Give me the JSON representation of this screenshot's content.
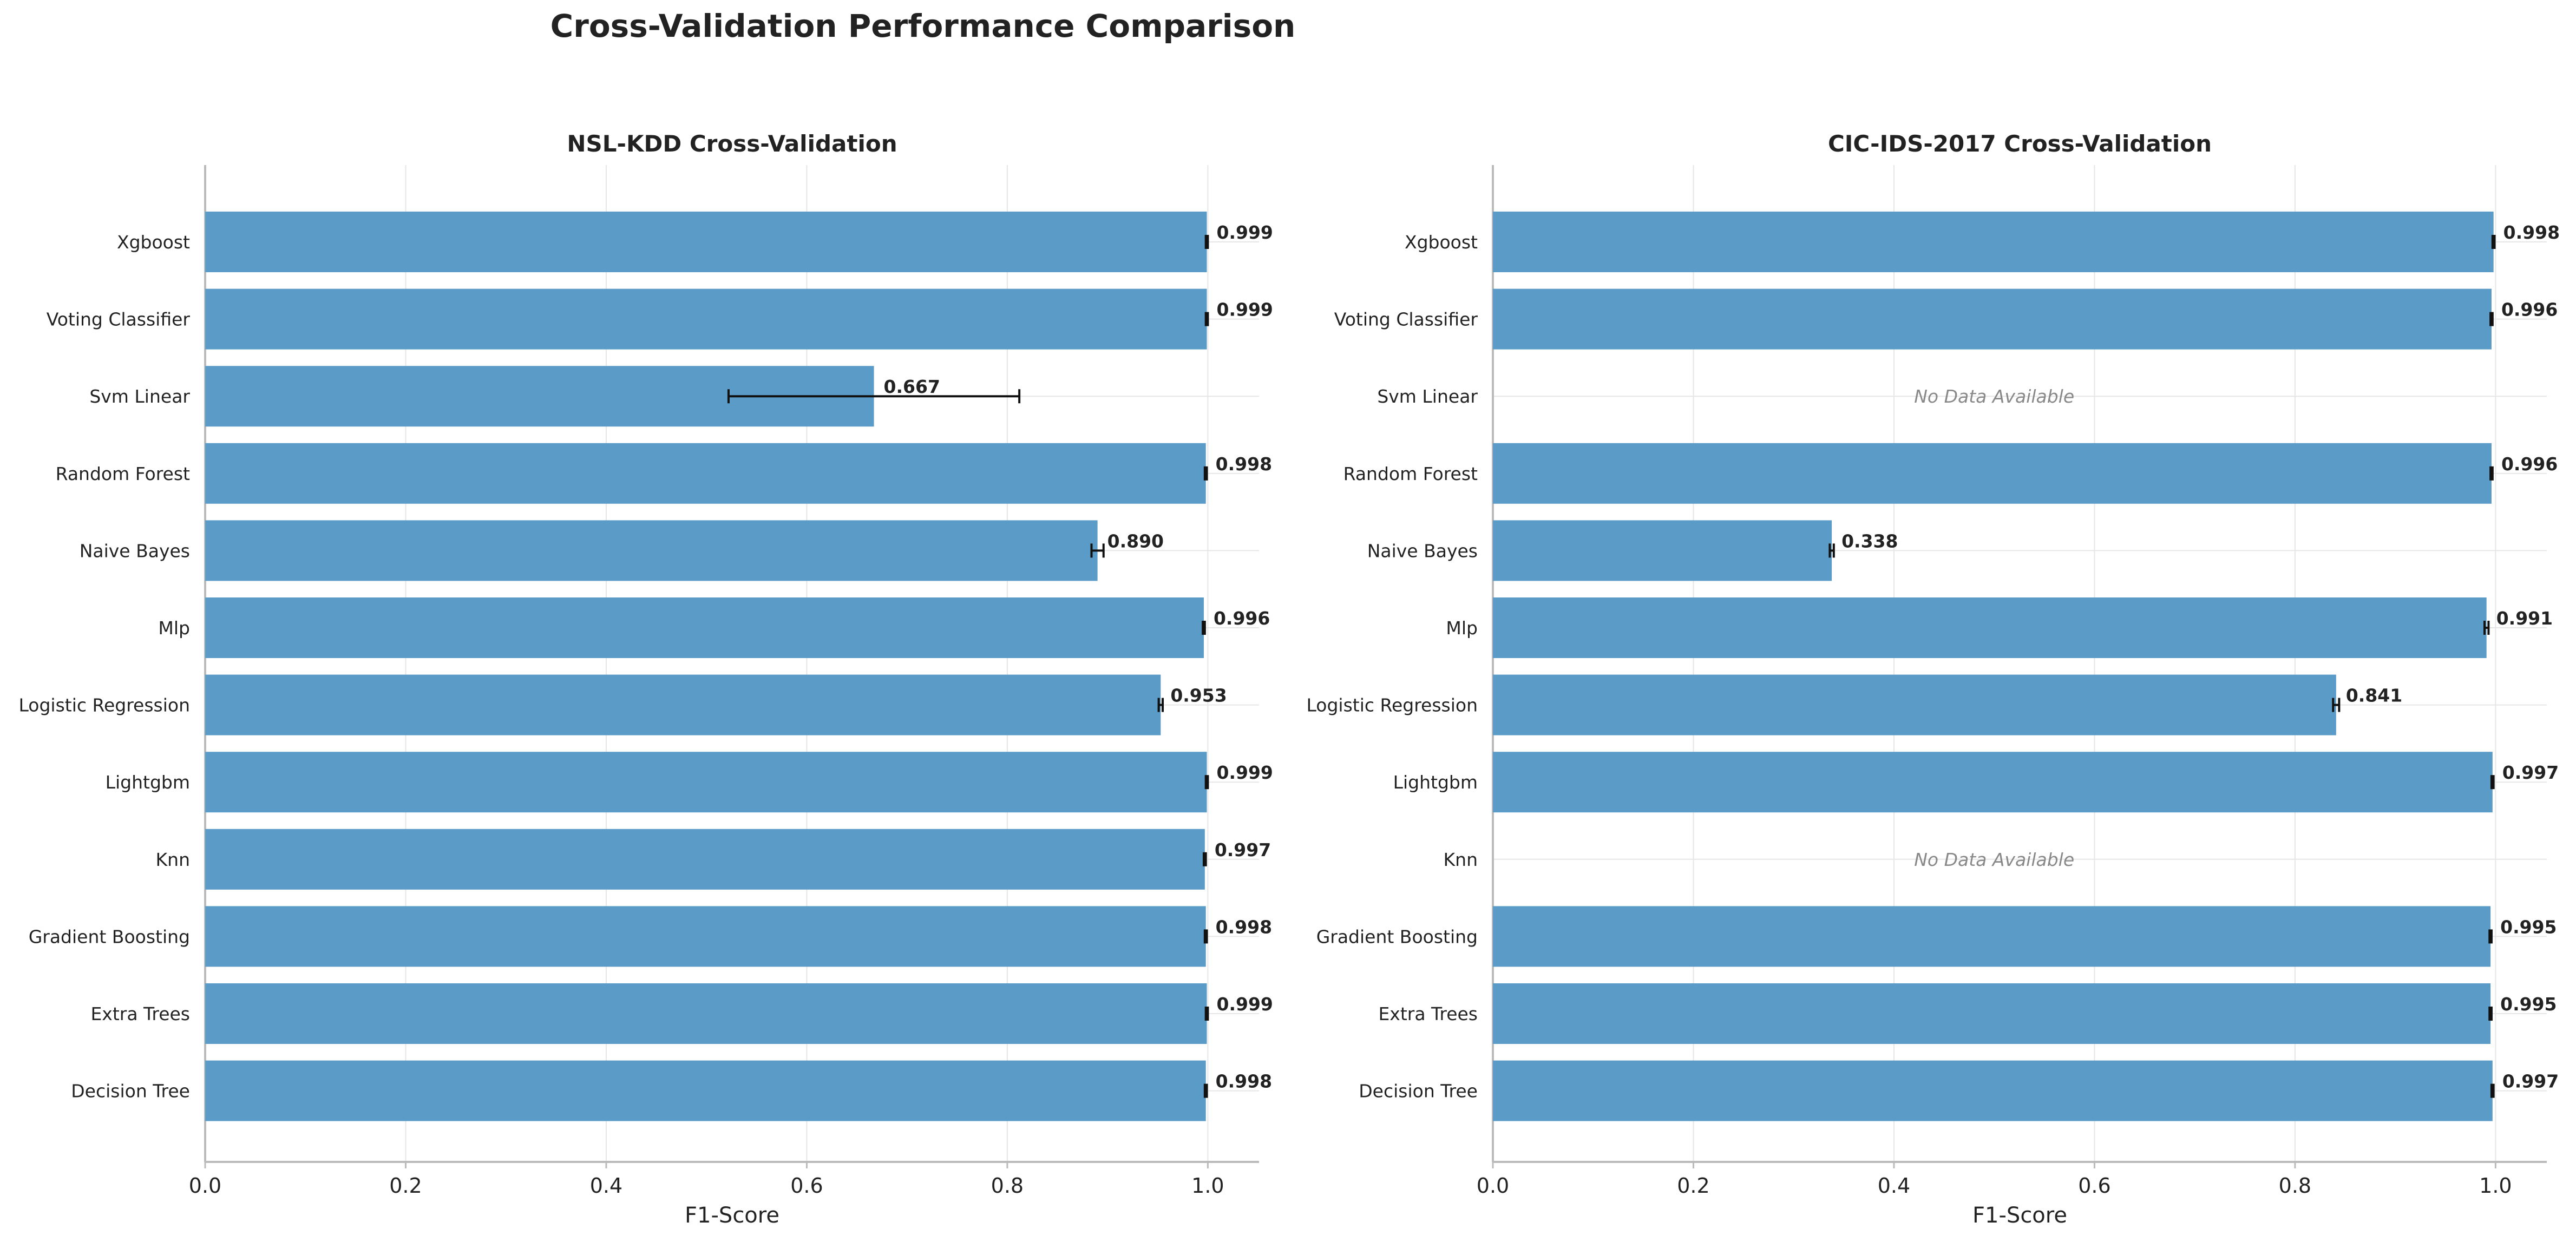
{
  "figure": {
    "title": "Cross-Validation Performance Comparison"
  },
  "colors": {
    "bar": "#5b9bc8",
    "text": "#222222",
    "grid": "#e6e6e6",
    "spine": "#bbbbbb",
    "no_data": "#888888"
  },
  "chart_data": [
    {
      "type": "bar",
      "orientation": "horizontal",
      "title": "NSL-KDD Cross-Validation",
      "xlabel": "F1-Score",
      "xlim": [
        0,
        1.05
      ],
      "xticks": [
        "0.0",
        "0.2",
        "0.4",
        "0.6",
        "0.8",
        "1.0"
      ],
      "grid": true,
      "categories": [
        "Xgboost",
        "Voting Classifier",
        "Svm Linear",
        "Random Forest",
        "Naive Bayes",
        "Mlp",
        "Logistic Regression",
        "Lightgbm",
        "Knn",
        "Gradient Boosting",
        "Extra Trees",
        "Decision Tree"
      ],
      "values": [
        0.999,
        0.999,
        0.667,
        0.998,
        0.89,
        0.996,
        0.953,
        0.999,
        0.997,
        0.998,
        0.999,
        0.998
      ],
      "errors": [
        0.001,
        0.001,
        0.145,
        0.001,
        0.006,
        0.001,
        0.002,
        0.001,
        0.001,
        0.001,
        0.001,
        0.001
      ],
      "labels": [
        "0.999",
        "0.999",
        "0.667",
        "0.998",
        "0.890",
        "0.996",
        "0.953",
        "0.999",
        "0.997",
        "0.998",
        "0.999",
        "0.998"
      ]
    },
    {
      "type": "bar",
      "orientation": "horizontal",
      "title": "CIC-IDS-2017 Cross-Validation",
      "xlabel": "F1-Score",
      "xlim": [
        0,
        1.05
      ],
      "xticks": [
        "0.0",
        "0.2",
        "0.4",
        "0.6",
        "0.8",
        "1.0"
      ],
      "grid": true,
      "categories": [
        "Xgboost",
        "Voting Classifier",
        "Svm Linear",
        "Random Forest",
        "Naive Bayes",
        "Mlp",
        "Logistic Regression",
        "Lightgbm",
        "Knn",
        "Gradient Boosting",
        "Extra Trees",
        "Decision Tree"
      ],
      "values": [
        0.998,
        0.996,
        null,
        0.996,
        0.338,
        0.991,
        0.841,
        0.997,
        null,
        0.995,
        0.995,
        0.997
      ],
      "errors": [
        0.001,
        0.001,
        null,
        0.001,
        0.002,
        0.002,
        0.003,
        0.001,
        null,
        0.001,
        0.001,
        0.001
      ],
      "labels": [
        "0.998",
        "0.996",
        "No Data Available",
        "0.996",
        "0.338",
        "0.991",
        "0.841",
        "0.997",
        "No Data Available",
        "0.995",
        "0.995",
        "0.997"
      ]
    }
  ]
}
